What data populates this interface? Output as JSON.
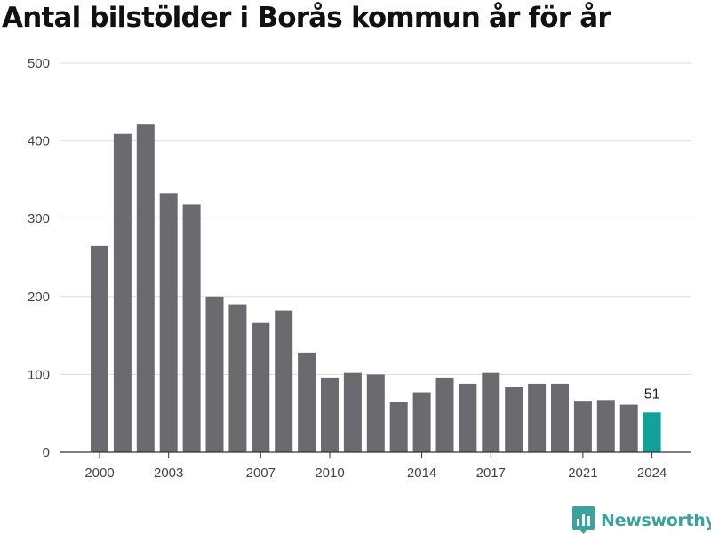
{
  "title": "Antal bilstölder i Borås kommun år för år",
  "brand": {
    "name": "Newsworthy",
    "color": "#3aa39b"
  },
  "colors": {
    "bar": "#6b6b6f",
    "highlight": "#0fa298",
    "grid": "#dddddd",
    "axis": "#333333",
    "text": "#444444"
  },
  "chart_data": {
    "type": "bar",
    "title": "Antal bilstölder i Borås kommun år för år",
    "xlabel": "",
    "ylabel": "",
    "categories": [
      "2000",
      "2001",
      "2002",
      "2003",
      "2004",
      "2005",
      "2006",
      "2007",
      "2008",
      "2009",
      "2010",
      "2011",
      "2012",
      "2013",
      "2014",
      "2015",
      "2016",
      "2017",
      "2018",
      "2019",
      "2020",
      "2021",
      "2022",
      "2023",
      "2024"
    ],
    "values": [
      265,
      409,
      421,
      333,
      318,
      200,
      190,
      167,
      182,
      128,
      96,
      102,
      100,
      65,
      77,
      96,
      88,
      102,
      84,
      88,
      88,
      66,
      67,
      61,
      51
    ],
    "x_tick_labels": [
      "2000",
      "2003",
      "2007",
      "2010",
      "2014",
      "2017",
      "2021",
      "2024"
    ],
    "y_ticks": [
      0,
      100,
      200,
      300,
      400,
      500
    ],
    "ylim": [
      0,
      500
    ],
    "grid": true,
    "legend": "none",
    "highlight": {
      "category": "2024",
      "label": "51"
    }
  }
}
